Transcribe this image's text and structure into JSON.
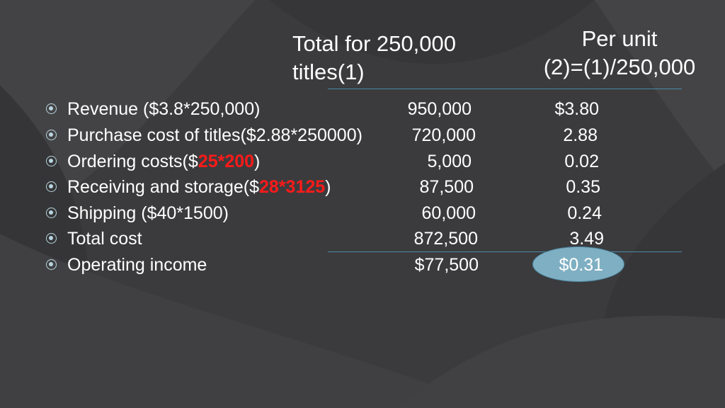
{
  "header": {
    "total_col": [
      "Total for 250,000",
      "titles(1)"
    ],
    "unit_col": [
      "Per unit",
      "(2)=(1)/250,000"
    ]
  },
  "rows": [
    {
      "label_before": "Revenue ($3.8*250,000)",
      "label_red": "",
      "label_after": "",
      "total": "950,000",
      "unit": "$3.80"
    },
    {
      "label_before": "Purchase cost of titles($2.88*250000)",
      "label_red": "",
      "label_after": "",
      "total": "720,000",
      "unit": "2.88"
    },
    {
      "label_before": "Ordering costs($",
      "label_red": "25*200",
      "label_after": ")",
      "total": "5,000",
      "unit": "0.02"
    },
    {
      "label_before": "Receiving and storage($",
      "label_red": "28*3125",
      "label_after": ")",
      "total": "87,500",
      "unit": "0.35"
    },
    {
      "label_before": "Shipping ($40*1500)",
      "label_red": "",
      "label_after": "",
      "total": "60,000",
      "unit": "0.24"
    },
    {
      "label_before": "Total cost",
      "label_red": "",
      "label_after": "",
      "total": "872,500",
      "unit": "3.49"
    },
    {
      "label_before": "Operating income",
      "label_red": "",
      "label_after": "",
      "total": "$77,500",
      "unit": "$0.31"
    }
  ],
  "colors": {
    "background": "#3b3b3d",
    "text": "#ffffff",
    "highlight": "#ff1a1a",
    "bullet": "#b8d4df",
    "rule": "#4a8aa6",
    "oval_fill": "#7fafc2"
  },
  "icons": {
    "bullet": "target-bullet-icon"
  }
}
